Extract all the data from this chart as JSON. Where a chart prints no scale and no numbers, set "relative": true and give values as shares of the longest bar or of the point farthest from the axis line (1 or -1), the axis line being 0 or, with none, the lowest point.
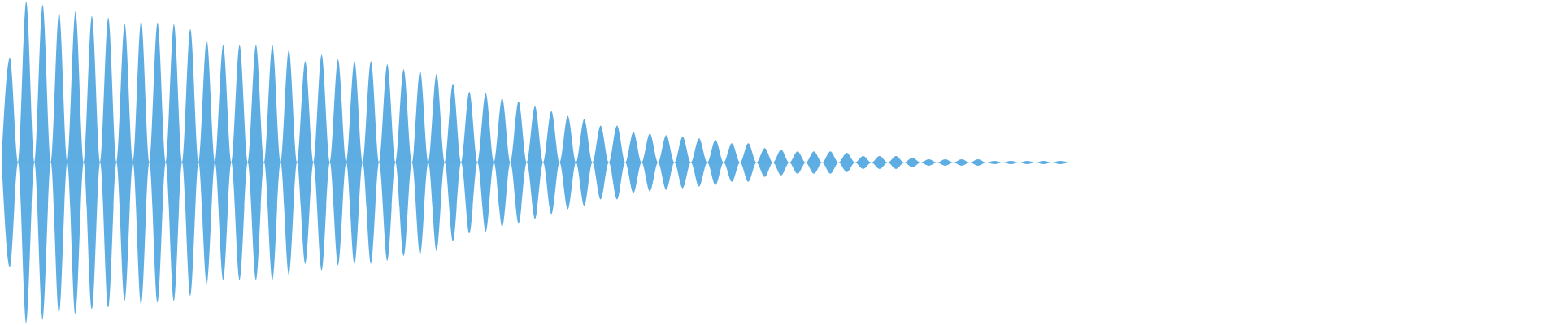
{
  "chart_data": {
    "type": "area",
    "relative": true,
    "tick_labels": false,
    "categories": [
      null,
      null,
      null,
      null,
      null,
      null,
      null,
      null,
      null,
      null,
      null,
      null,
      null,
      null,
      null,
      null,
      null,
      null,
      null,
      null,
      null,
      null,
      null,
      null,
      null,
      null,
      null,
      null,
      null,
      null,
      null,
      null,
      null,
      null,
      null,
      null,
      null,
      null,
      null,
      null,
      null,
      null,
      null,
      null,
      null,
      null,
      null,
      null,
      null,
      null,
      null,
      null,
      null,
      null,
      null,
      null,
      null,
      null,
      null,
      null,
      null,
      null,
      null,
      null,
      null,
      null,
      null,
      null,
      null,
      null,
      null,
      null,
      null,
      null,
      null,
      null,
      null,
      null,
      null,
      null,
      null,
      null,
      null,
      null,
      null,
      null,
      null,
      null,
      null,
      null,
      null,
      null,
      null,
      null,
      null,
      null,
      null,
      null,
      null,
      null,
      null,
      null,
      null,
      null,
      null,
      null,
      null,
      null,
      null,
      null,
      null,
      null,
      null,
      null,
      null,
      null,
      null,
      null,
      null,
      null,
      null,
      null,
      null,
      null,
      null,
      null,
      null,
      null,
      null,
      null,
      null
    ],
    "series": [
      {
        "color": "#5dade2",
        "values": [
          0,
          0.65,
          0,
          1,
          0,
          0.98,
          0,
          0.93,
          0,
          0.94,
          0,
          0.91,
          0,
          0.9,
          0,
          0.86,
          0,
          0.88,
          0,
          0.87,
          0,
          0.86,
          0,
          0.83,
          0,
          0.76,
          0,
          0.73,
          0,
          0.73,
          0,
          0.73,
          0,
          0.73,
          0,
          0.7,
          0,
          0.63,
          0,
          0.67,
          0,
          0.64,
          0,
          0.63,
          0,
          0.63,
          0,
          0.61,
          0,
          0.58,
          0,
          0.57,
          0,
          0.55,
          0,
          0.49,
          0,
          0.44,
          0,
          0.43,
          0,
          0.4,
          0,
          0.38,
          0,
          0.35,
          0,
          0.32,
          0,
          0.29,
          0,
          0.27,
          0,
          0.23,
          0,
          0.23,
          0,
          0.19,
          0,
          0.18,
          0,
          0.17,
          0,
          0.16,
          0,
          0.15,
          0,
          0.14,
          0,
          0.12,
          0,
          0.12,
          0,
          0.09,
          0,
          0.08,
          0,
          0.07,
          0,
          0.07,
          0,
          0.07,
          0,
          0.06,
          0,
          0.04,
          0,
          0.04,
          0,
          0.04,
          0,
          0.03,
          0,
          0.02,
          0,
          0.02,
          0,
          0.02,
          0,
          0.02,
          0,
          0.01,
          0,
          0.01,
          0,
          0.01,
          0,
          0.01,
          0,
          0.01,
          0
        ]
      },
      {
        "color": "#5eaee3",
        "values": [
          0,
          -0.65,
          0,
          -1,
          0,
          -0.98,
          0,
          -0.93,
          0,
          -0.94,
          0,
          -0.91,
          0,
          -0.9,
          0,
          -0.86,
          0,
          -0.88,
          0,
          -0.87,
          0,
          -0.86,
          0,
          -0.83,
          0,
          -0.76,
          0,
          -0.73,
          0,
          -0.73,
          0,
          -0.73,
          0,
          -0.73,
          0,
          -0.7,
          0,
          -0.63,
          0,
          -0.67,
          0,
          -0.64,
          0,
          -0.63,
          0,
          -0.63,
          0,
          -0.61,
          0,
          -0.58,
          0,
          -0.57,
          0,
          -0.55,
          0,
          -0.49,
          0,
          -0.44,
          0,
          -0.43,
          0,
          -0.4,
          0,
          -0.38,
          0,
          -0.35,
          0,
          -0.32,
          0,
          -0.29,
          0,
          -0.27,
          0,
          -0.23,
          0,
          -0.23,
          0,
          -0.19,
          0,
          -0.18,
          0,
          -0.17,
          0,
          -0.16,
          0,
          -0.15,
          0,
          -0.14,
          0,
          -0.12,
          0,
          -0.12,
          0,
          -0.09,
          0,
          -0.08,
          0,
          -0.07,
          0,
          -0.07,
          0,
          -0.07,
          0,
          -0.06,
          0,
          -0.04,
          0,
          -0.04,
          0,
          -0.04,
          0,
          -0.03,
          0,
          -0.02,
          0,
          -0.02,
          0,
          -0.02,
          0,
          -0.02,
          0,
          -0.01,
          0,
          -0.01,
          0,
          -0.01,
          0,
          -0.01,
          0,
          -0.01,
          0
        ]
      }
    ]
  }
}
